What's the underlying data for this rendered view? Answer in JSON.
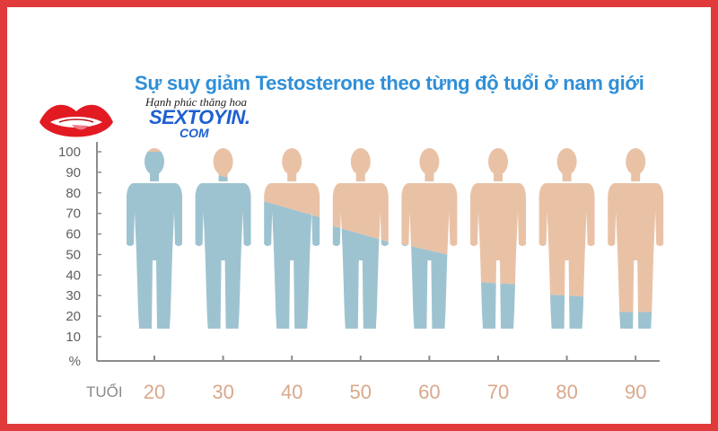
{
  "title": "Sự suy giảm Testosterone theo từng độ tuổi ở nam giới",
  "logo": {
    "tagline": "Hạnh phúc thăng hoa",
    "brand": "SEXTOYIN.",
    "brand_sub": "COM"
  },
  "colors": {
    "remaining": "#9ec3d0",
    "lost": "#e9c2a6",
    "border": "#e03a3a",
    "title": "#2f8fd8",
    "brand": "#1f5fd0",
    "axis": "#8c8c8c",
    "x_tick": "#d9a88b"
  },
  "chart_data": {
    "type": "bar",
    "title": "Sự suy giảm Testosterone theo từng độ tuổi ở nam giới",
    "xlabel": "tuổi",
    "ylabel": "%",
    "categories": [
      "20",
      "30",
      "40",
      "50",
      "60",
      "70",
      "80",
      "90"
    ],
    "series": [
      {
        "name": "",
        "values": [
          100,
          88,
          72,
          60,
          52,
          36,
          30,
          22
        ],
        "slope": [
          0,
          8,
          10,
          10,
          8,
          2,
          2,
          0
        ]
      }
    ],
    "ylim": [
      0,
      100
    ],
    "yticks": [
      100,
      90,
      80,
      70,
      60,
      50,
      40,
      30,
      20,
      10
    ],
    "ytick_labels": [
      "100",
      "90",
      "80",
      "70",
      "60",
      "50",
      "40",
      "30",
      "20",
      "10",
      "%"
    ],
    "x_axis_title": "TUỔI",
    "grid": false,
    "legend": "none"
  }
}
